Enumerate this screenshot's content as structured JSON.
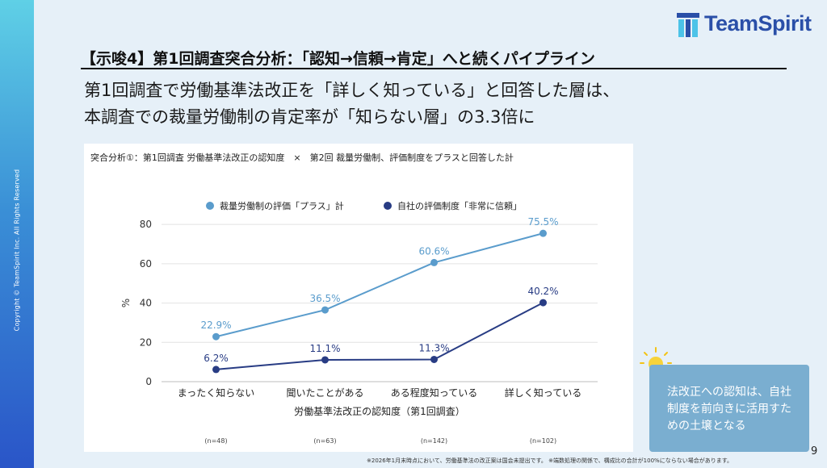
{
  "brand": {
    "logo_text": "TeamSpirit",
    "copyright": "Copyright © TeamSpirit Inc. All Rights Reserved",
    "colors": {
      "band_top": "#5fd0e6",
      "band_bottom": "#2a55c8",
      "logo": "#2a4fa8"
    }
  },
  "slide": {
    "headline": "【示唆4】第1回調査突合分析：「認知→信頼→肯定」へと続くパイプライン",
    "subhead_line1": "第1回調査で労働基準法改正を「詳しく知っている」と回答した層は、",
    "subhead_line2": "本調査での裁量労働制の肯定率が「知らない層」の3.3倍に",
    "page_number": "9",
    "footnote": "※2026年1月末時点において、労働基準法の改正案は国会未提出です。 ※端数処理の関係で、構成比の合計が100%にならない場合があります。"
  },
  "callout": {
    "text": "法改正への認知は、自社制度を前向きに活用すための土壌となる",
    "icon": "lightbulb-icon"
  },
  "chart_data": {
    "type": "line",
    "title": "突合分析①：第1回調査 労働基準法改正の認知度　×　第2回 裁量労働制、評価制度をプラスと回答した計",
    "categories": [
      "まったく知らない",
      "聞いたことがある",
      "ある程度知っている",
      "詳しく知っている"
    ],
    "sample_sizes": [
      "(n=48)",
      "(n=63)",
      "(n=142)",
      "(n=102)"
    ],
    "xlabel": "労働基準法改正の認知度（第1回調査）",
    "ylabel": "%",
    "ylim": [
      0,
      85
    ],
    "yticks": [
      0,
      20,
      40,
      60,
      80
    ],
    "grid": true,
    "legend_position": "top",
    "series": [
      {
        "name": "裁量労働制の評価「プラス」計",
        "values": [
          22.9,
          36.5,
          60.6,
          75.5
        ],
        "labels": [
          "22.9%",
          "36.5%",
          "60.6%",
          "75.5%"
        ],
        "color": "#5a9ccc"
      },
      {
        "name": "自社の評価制度「非常に信頼」",
        "values": [
          6.2,
          11.1,
          11.3,
          40.2
        ],
        "labels": [
          "6.2%",
          "11.1%",
          "11.3%",
          "40.2%"
        ],
        "color": "#283c84"
      }
    ]
  }
}
